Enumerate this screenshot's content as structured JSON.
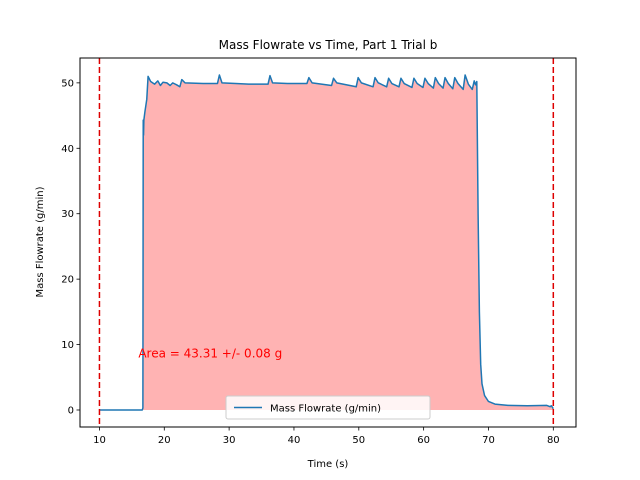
{
  "chart_data": {
    "type": "area",
    "title": "Mass Flowrate vs Time, Part 1 Trial b",
    "xlabel": "Time (s)",
    "ylabel": "Mass Flowrate (g/min)",
    "xlim": [
      7,
      83.5
    ],
    "ylim": [
      -2.6,
      53.8
    ],
    "xticks": [
      10,
      20,
      30,
      40,
      50,
      60,
      70,
      80
    ],
    "yticks": [
      0,
      10,
      20,
      30,
      40,
      50
    ],
    "legend": {
      "position": "lower-center",
      "entries": [
        "Mass Flowrate (g/min)"
      ]
    },
    "grid": false,
    "vlines": [
      {
        "x": 10,
        "color": "#dd0000",
        "style": "dashed"
      },
      {
        "x": 80,
        "color": "#dd0000",
        "style": "dashed"
      }
    ],
    "fill": {
      "x_from": 10,
      "x_to": 80,
      "color": "#ffb3b3"
    },
    "annotation": {
      "text": "Area = 43.31 +/- 0.08 g",
      "x": 16,
      "y": 8,
      "color": "#ff0000"
    },
    "series": [
      {
        "name": "Mass Flowrate (g/min)",
        "color": "#1f77b4",
        "points": [
          [
            10,
            0
          ],
          [
            16.6,
            0
          ],
          [
            16.7,
            0.3
          ],
          [
            16.75,
            44.3
          ],
          [
            16.8,
            42.0
          ],
          [
            16.85,
            44.3
          ],
          [
            17.0,
            45.5
          ],
          [
            17.3,
            47.5
          ],
          [
            17.5,
            51.0
          ],
          [
            17.9,
            50.2
          ],
          [
            18.5,
            49.8
          ],
          [
            19.0,
            50.3
          ],
          [
            19.4,
            49.6
          ],
          [
            19.8,
            50.1
          ],
          [
            20.4,
            50.0
          ],
          [
            20.9,
            49.6
          ],
          [
            21.3,
            50.0
          ],
          [
            21.9,
            49.7
          ],
          [
            22.4,
            49.4
          ],
          [
            22.7,
            50.5
          ],
          [
            23.2,
            50.0
          ],
          [
            26.0,
            49.9
          ],
          [
            28.2,
            49.9
          ],
          [
            28.5,
            51.2
          ],
          [
            28.9,
            50.0
          ],
          [
            31.0,
            49.9
          ],
          [
            33.0,
            49.8
          ],
          [
            36.0,
            49.8
          ],
          [
            36.3,
            51.1
          ],
          [
            36.7,
            50.0
          ],
          [
            39.0,
            49.9
          ],
          [
            42.0,
            49.9
          ],
          [
            42.3,
            50.8
          ],
          [
            42.8,
            50.0
          ],
          [
            45.8,
            49.6
          ],
          [
            46.1,
            50.7
          ],
          [
            46.6,
            50.0
          ],
          [
            49.6,
            49.4
          ],
          [
            49.9,
            50.8
          ],
          [
            50.4,
            50.0
          ],
          [
            52.2,
            49.4
          ],
          [
            52.5,
            50.8
          ],
          [
            53.0,
            50.0
          ],
          [
            54.3,
            49.4
          ],
          [
            54.6,
            50.7
          ],
          [
            55.1,
            49.9
          ],
          [
            56.2,
            49.4
          ],
          [
            56.5,
            50.7
          ],
          [
            57.0,
            49.9
          ],
          [
            58.2,
            49.3
          ],
          [
            58.5,
            50.7
          ],
          [
            59.0,
            49.9
          ],
          [
            59.9,
            49.3
          ],
          [
            60.2,
            50.7
          ],
          [
            60.7,
            49.9
          ],
          [
            61.5,
            49.2
          ],
          [
            61.8,
            50.8
          ],
          [
            62.3,
            49.9
          ],
          [
            63.0,
            49.2
          ],
          [
            63.3,
            50.8
          ],
          [
            63.8,
            49.9
          ],
          [
            64.5,
            49.1
          ],
          [
            64.8,
            50.8
          ],
          [
            65.3,
            49.9
          ],
          [
            66.1,
            49.0
          ],
          [
            66.4,
            51.2
          ],
          [
            66.9,
            49.8
          ],
          [
            67.5,
            49.0
          ],
          [
            67.8,
            50.3
          ],
          [
            68.0,
            49.7
          ],
          [
            68.2,
            50.2
          ],
          [
            68.4,
            30.0
          ],
          [
            68.6,
            15.0
          ],
          [
            68.8,
            7.0
          ],
          [
            69.0,
            4.0
          ],
          [
            69.4,
            2.2
          ],
          [
            70.0,
            1.3
          ],
          [
            71.0,
            0.9
          ],
          [
            73.0,
            0.7
          ],
          [
            76.0,
            0.65
          ],
          [
            79.0,
            0.7
          ],
          [
            79.5,
            0.5
          ],
          [
            79.7,
            0.65
          ],
          [
            80.0,
            0.2
          ]
        ]
      }
    ]
  }
}
